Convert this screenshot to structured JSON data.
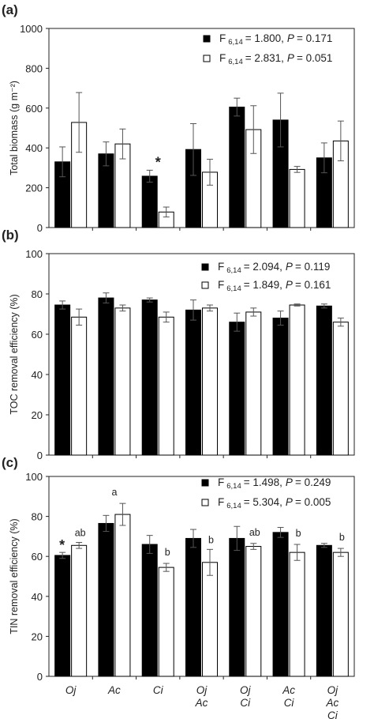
{
  "chart_data": [
    {
      "panel_label": "(a)",
      "type": "bar",
      "ylabel": "Total biomass (g m⁻²)",
      "ylim": [
        0,
        1000
      ],
      "yticks": [
        0,
        200,
        400,
        600,
        800,
        1000
      ],
      "categories": [
        "Oj",
        "Ac",
        "Ci",
        "Oj Ac",
        "Oj Ci",
        "Ac Ci",
        "Oj Ac Ci"
      ],
      "series": [
        {
          "fill": "black",
          "values": [
            330,
            370,
            258,
            392,
            605,
            540,
            350
          ],
          "errors": [
            75,
            60,
            30,
            130,
            45,
            135,
            75
          ]
        },
        {
          "fill": "white",
          "values": [
            528,
            420,
            78,
            278,
            492,
            292,
            435
          ],
          "errors": [
            150,
            75,
            25,
            65,
            120,
            15,
            100
          ]
        }
      ],
      "legend": [
        {
          "stat": "F",
          "df": "6,14",
          "f_value": "= 1.800,",
          "p_label": "P",
          "p_value": "= 0.171"
        },
        {
          "stat": "F",
          "df": "6,14",
          "f_value": "= 2.831,",
          "p_label": "P",
          "p_value": "= 0.051"
        }
      ],
      "annotations": [
        {
          "category": "Ci",
          "text": "*"
        }
      ]
    },
    {
      "panel_label": "(b)",
      "type": "bar",
      "ylabel": "TOC removal efficiency (%)",
      "ylim": [
        0,
        100
      ],
      "yticks": [
        0,
        20,
        40,
        60,
        80,
        100
      ],
      "categories": [
        "Oj",
        "Ac",
        "Ci",
        "Oj Ac",
        "Oj Ci",
        "Ac Ci",
        "Oj Ac Ci"
      ],
      "series": [
        {
          "fill": "black",
          "values": [
            74.5,
            78,
            77,
            72,
            66,
            68,
            74
          ],
          "errors": [
            2,
            2.5,
            1,
            5,
            4.5,
            3.5,
            1
          ]
        },
        {
          "fill": "white",
          "values": [
            68.5,
            73,
            68.5,
            73,
            71,
            74.5,
            66
          ],
          "errors": [
            4,
            1.5,
            2.5,
            1.5,
            2,
            0.5,
            2
          ]
        }
      ],
      "legend": [
        {
          "stat": "F",
          "df": "6,14",
          "f_value": "= 2.094,",
          "p_label": "P",
          "p_value": "= 0.119"
        },
        {
          "stat": "F",
          "df": "6,14",
          "f_value": "= 1.849,",
          "p_label": "P",
          "p_value": "= 0.161"
        }
      ],
      "annotations": []
    },
    {
      "panel_label": "(c)",
      "type": "bar",
      "ylabel": "TIN removal efficiency (%)",
      "ylim": [
        0,
        100
      ],
      "yticks": [
        0,
        20,
        40,
        60,
        80,
        100
      ],
      "categories": [
        "Oj",
        "Ac",
        "Ci",
        "Oj Ac",
        "Oj Ci",
        "Ac Ci",
        "Oj Ac Ci"
      ],
      "series": [
        {
          "fill": "black",
          "values": [
            60.5,
            76.5,
            66,
            69,
            69,
            72,
            65.5
          ],
          "errors": [
            1.5,
            4,
            4.5,
            4.5,
            6,
            2.5,
            1
          ]
        },
        {
          "fill": "white",
          "values": [
            65.5,
            81,
            54.5,
            57,
            65,
            62,
            62
          ],
          "errors": [
            1.5,
            5.5,
            2,
            6.5,
            1.5,
            4,
            2
          ]
        }
      ],
      "legend": [
        {
          "stat": "F",
          "df": "6,14",
          "f_value": "= 1.498,",
          "p_label": "P",
          "p_value": "= 0.249"
        },
        {
          "stat": "F",
          "df": "6,14",
          "f_value": "= 5.304,",
          "p_label": "P",
          "p_value": "= 0.005"
        }
      ],
      "annotations": [
        {
          "category": "Oj",
          "text": "*"
        },
        {
          "category": "Oj",
          "text": "ab"
        },
        {
          "category": "Ac",
          "text": "a"
        },
        {
          "category": "Ci",
          "text": "b"
        },
        {
          "category": "Oj Ac",
          "text": "b"
        },
        {
          "category": "Oj Ci",
          "text": "ab"
        },
        {
          "category": "Ac Ci",
          "text": "b"
        },
        {
          "category": "Oj Ac Ci",
          "text": "b"
        }
      ]
    }
  ]
}
